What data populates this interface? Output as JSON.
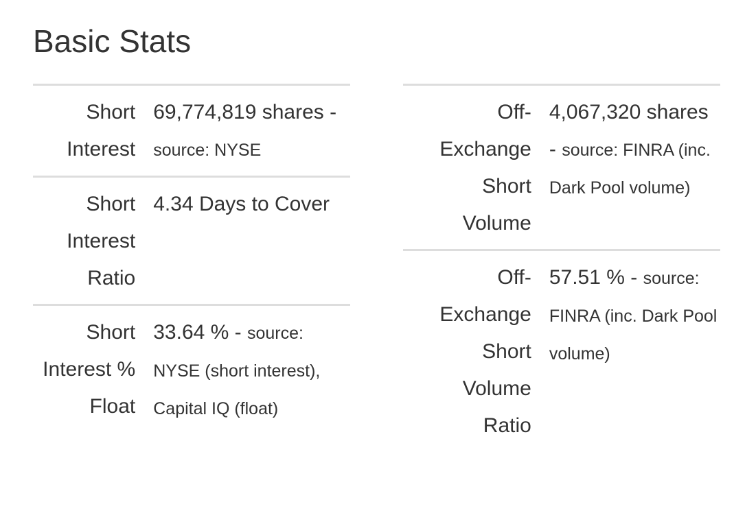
{
  "header": {
    "title": "Basic Stats"
  },
  "tables": [
    {
      "rows": [
        {
          "label": "Short Interest",
          "value": "69,774,819 shares -",
          "source": "source: NYSE"
        },
        {
          "label": "Short Interest Ratio",
          "value": "4.34 Days to Cover"
        },
        {
          "label": "Short Interest % Float",
          "value": "33.64 % -",
          "source": "source: NYSE (short interest), Capital IQ (float)"
        }
      ]
    },
    {
      "rows": [
        {
          "label": "Off-Exchange Short Volume",
          "value": "4,067,320 shares -",
          "source": "source: FINRA (inc. Dark Pool volume)"
        },
        {
          "label": "Off-Exchange Short Volume Ratio",
          "value": "57.51 % -",
          "source": "source: FINRA (inc. Dark Pool volume)"
        }
      ]
    }
  ]
}
